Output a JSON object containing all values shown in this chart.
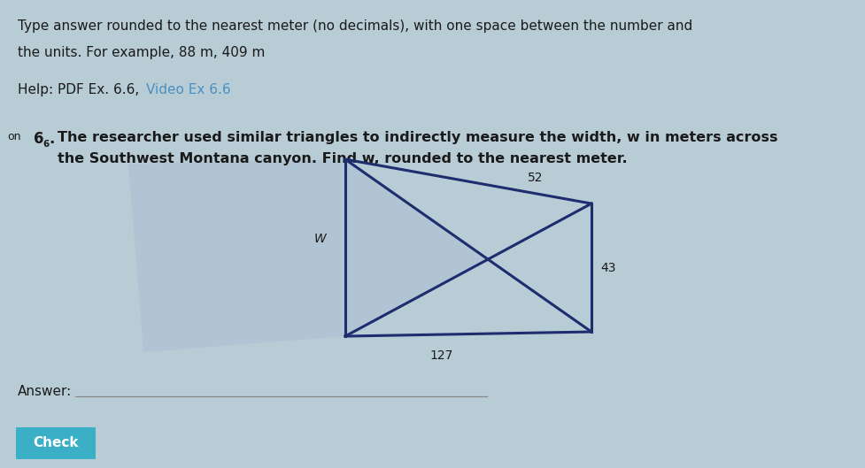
{
  "bg_outer": "#b8ccd6",
  "bg_top_section": "#ccdde6",
  "bg_question_section": "#c8d8e0",
  "bg_diagram_inner": "#ccdde6",
  "bg_answer_section": "#ccdde6",
  "bg_check_btn": "#3aafc5",
  "text_color_main": "#1a1a1a",
  "text_color_link": "#4a8fc0",
  "triangle_color": "#1e2d6e",
  "shaded_color": "#b0c4d4",
  "line1": "Type answer rounded to the nearest meter (no decimals), with one space between the number and",
  "line2": "the units. For example, 88 m, 409 m",
  "help_plain": "Help: PDF Ex. 6.6, ",
  "help_link": "Video Ex 6.6",
  "problem_num": "6",
  "problem_dot": ".",
  "problem_sub": "6",
  "problem_text1": "The researcher used similar triangles to indirectly measure the width, w in meters across",
  "problem_text2": "the Southwest Montana canyon. Find w, rounded to the nearest meter.",
  "answer_label": "Answer:",
  "check_label": "Check",
  "label_w": "W",
  "label_52": "52",
  "label_43": "43",
  "label_127": "127",
  "on_text": "on",
  "fig_w": 9.77,
  "fig_h": 5.29,
  "dpi": 100
}
